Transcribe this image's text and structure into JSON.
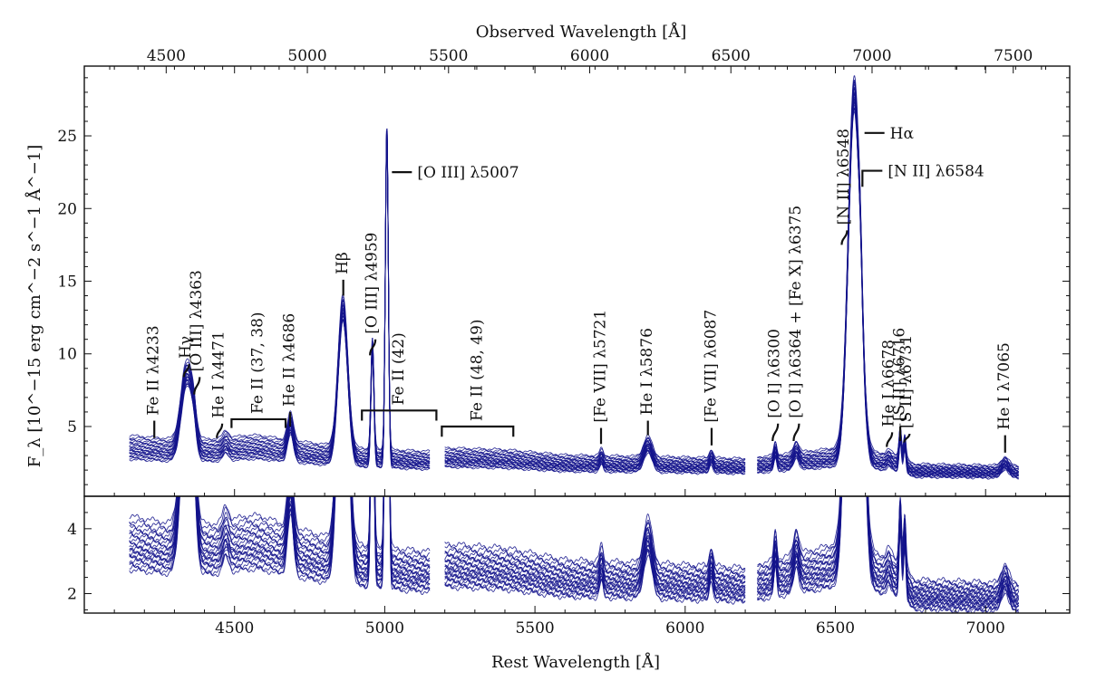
{
  "chart_data": {
    "type": "line",
    "title": "",
    "top_axis": {
      "label": "Observed Wavelength [Å]",
      "ticks": [
        4500,
        5000,
        5500,
        6000,
        6500,
        7000,
        7500
      ],
      "tick_labels": [
        "4500",
        "5000",
        "5500",
        "6000",
        "6500",
        "7000",
        "7500"
      ],
      "range": [
        4210,
        7700
      ]
    },
    "xlabel": "Rest Wavelength [Å]",
    "ylabel": "F_λ [10^−15 erg cm^−2 s^−1 Å^−1]",
    "xlim": [
      4000,
      7280
    ],
    "x_ticks": [
      4500,
      5000,
      5500,
      6000,
      6500,
      7000
    ],
    "x_tick_labels": [
      "4500",
      "5000",
      "5500",
      "6000",
      "6500",
      "7000"
    ],
    "panels": [
      {
        "name": "full",
        "ylim": [
          0.2,
          29.8
        ],
        "y_ticks": [
          5,
          10,
          15,
          20,
          25
        ],
        "y_tick_labels": [
          "5",
          "10",
          "15",
          "20",
          "25"
        ]
      },
      {
        "name": "zoom",
        "ylim": [
          1.4,
          5.0
        ],
        "y_ticks": [
          2,
          4
        ],
        "y_tick_labels": [
          "2",
          "4"
        ]
      }
    ],
    "n_epochs": 24,
    "epoch_scale": [
      0.76,
      0.78,
      0.8,
      0.82,
      0.84,
      0.86,
      0.87,
      0.89,
      0.9,
      0.92,
      0.93,
      0.95,
      0.96,
      0.98,
      1.0,
      1.02,
      1.04,
      1.06,
      1.08,
      1.1,
      1.12,
      1.15,
      1.18,
      1.22
    ],
    "segments": [
      [
        4150,
        5150
      ],
      [
        5200,
        5950
      ],
      [
        5950,
        6200
      ],
      [
        6240,
        7110
      ]
    ],
    "continuum": [
      {
        "x": 4150,
        "y": 3.6
      },
      {
        "x": 4300,
        "y": 3.4
      },
      {
        "x": 4500,
        "y": 3.4
      },
      {
        "x": 4700,
        "y": 3.3
      },
      {
        "x": 4900,
        "y": 2.9
      },
      {
        "x": 5150,
        "y": 2.7
      },
      {
        "x": 5200,
        "y": 2.9
      },
      {
        "x": 5400,
        "y": 2.8
      },
      {
        "x": 5600,
        "y": 2.5
      },
      {
        "x": 5950,
        "y": 2.4
      },
      {
        "x": 6200,
        "y": 2.3
      },
      {
        "x": 6250,
        "y": 2.4
      },
      {
        "x": 6500,
        "y": 2.9
      },
      {
        "x": 6720,
        "y": 2.5
      },
      {
        "x": 6760,
        "y": 2.0
      },
      {
        "x": 7110,
        "y": 1.9
      }
    ],
    "emission_lines": [
      {
        "name": "Hγ",
        "center": 4340,
        "peak": 5.2,
        "width": 18
      },
      {
        "name": "[O III] 4363",
        "center": 4363,
        "peak": 1.5,
        "width": 10
      },
      {
        "name": "He I 4471",
        "center": 4471,
        "peak": 0.5,
        "width": 10
      },
      {
        "name": "He II 4686",
        "center": 4686,
        "peak": 1.9,
        "width": 10
      },
      {
        "name": "Hβ",
        "center": 4861,
        "peak": 10.2,
        "width": 16
      },
      {
        "name": "[O III] 4959",
        "center": 4959,
        "peak": 7.7,
        "width": 5
      },
      {
        "name": "[O III] 5007",
        "center": 5007,
        "peak": 22.5,
        "width": 5
      },
      {
        "name": "[Fe VII] 5721",
        "center": 5721,
        "peak": 0.5,
        "width": 6
      },
      {
        "name": "He I 5876",
        "center": 5876,
        "peak": 1.4,
        "width": 14
      },
      {
        "name": "[Fe VII] 6087",
        "center": 6087,
        "peak": 0.6,
        "width": 6
      },
      {
        "name": "[O I] 6300",
        "center": 6300,
        "peak": 0.9,
        "width": 5
      },
      {
        "name": "[O I] 6364 + [Fe X] 6375",
        "center": 6370,
        "peak": 0.8,
        "width": 9
      },
      {
        "name": "Hα",
        "center": 6563,
        "peak": 25.2,
        "width": 20
      },
      {
        "name": "[N II] 6584",
        "center": 6584,
        "peak": 2.0,
        "width": 6
      },
      {
        "name": "He I 6678",
        "center": 6678,
        "peak": 0.3,
        "width": 8
      },
      {
        "name": "[S II] 6716",
        "center": 6716,
        "peak": 2.0,
        "width": 4
      },
      {
        "name": "[S II] 6731",
        "center": 6731,
        "peak": 1.6,
        "width": 4
      },
      {
        "name": "He I 7065",
        "center": 7065,
        "peak": 0.6,
        "width": 12
      }
    ],
    "annotations": [
      {
        "text": "Fe II λ4233",
        "x": 4233,
        "y": 6.5,
        "tick_top": 4.2,
        "tick_bottom": 5.4,
        "rotate": true,
        "shape": "tick"
      },
      {
        "text": "Hγ",
        "x": 4340,
        "y": 9.4,
        "tick_top": 8.4,
        "tick_bottom": 9.3,
        "rotate": true,
        "shape": "hook"
      },
      {
        "text": "[O III] λ4363",
        "x": 4375,
        "y": 8.5,
        "tick_top": 7.2,
        "tick_bottom": 8.4,
        "rotate": true,
        "shape": "hook"
      },
      {
        "text": "He I λ4471",
        "x": 4450,
        "y": 5.3,
        "tick_top": 4.2,
        "tick_bottom": 5.2,
        "rotate": true,
        "shape": "hook"
      },
      {
        "text": "Fe II (37, 38)",
        "x1": 4490,
        "x2": 4670,
        "y": 5.7,
        "tick_top": 4.9,
        "tick_bottom": 5.5,
        "rotate": true,
        "shape": "bracket"
      },
      {
        "text": "He II λ4686",
        "x": 4685,
        "y": 6.0,
        "tick_top": 5.0,
        "tick_bottom": 6.0,
        "rotate": true,
        "shape": "tick"
      },
      {
        "text": "Hβ",
        "x": 4862,
        "y": 15.1,
        "tick_top": 14.0,
        "tick_bottom": 15.1,
        "rotate": true,
        "shape": "tick"
      },
      {
        "text": "[O III] λ4959",
        "x": 4960,
        "y": 11.0,
        "tick_top": 9.9,
        "tick_bottom": 11.0,
        "rotate": true,
        "shape": "hook"
      },
      {
        "text": "Fe II (42)",
        "x1": 4924,
        "x2": 5172,
        "y": 6.2,
        "tick_top": 5.4,
        "tick_bottom": 6.1,
        "rotate": true,
        "shape": "bracket"
      },
      {
        "text": "[O III] λ5007",
        "x": 5024,
        "y": 22.5,
        "tick_top": 22.5,
        "tick_bottom": 22.5,
        "rotate": false,
        "shape": "horizontal"
      },
      {
        "text": "Fe II (48, 49)",
        "x1": 5190,
        "x2": 5428,
        "y": 5.2,
        "tick_top": 4.3,
        "tick_bottom": 5.0,
        "rotate": true,
        "shape": "bracket"
      },
      {
        "text": "[Fe VII] λ5721",
        "x": 5720,
        "y": 5.3,
        "tick_top": 3.8,
        "tick_bottom": 4.9,
        "rotate": true,
        "shape": "tick"
      },
      {
        "text": "He I λ5876",
        "x": 5876,
        "y": 5.4,
        "tick_top": 4.4,
        "tick_bottom": 5.4,
        "rotate": true,
        "shape": "tick"
      },
      {
        "text": "[Fe VII] λ6087",
        "x": 6088,
        "y": 5.3,
        "tick_top": 3.7,
        "tick_bottom": 4.9,
        "rotate": true,
        "shape": "tick"
      },
      {
        "text": "[O I] λ6300",
        "x": 6300,
        "y": 5.5,
        "tick_top": 4.0,
        "tick_bottom": 5.2,
        "rotate": true,
        "shape": "hook"
      },
      {
        "text": "[O I] λ6364 + [Fe X] λ6375",
        "x": 6370,
        "y": 5.5,
        "tick_top": 4.0,
        "tick_bottom": 5.2,
        "rotate": true,
        "shape": "hook"
      },
      {
        "text": "[N II] λ6548",
        "x": 6530,
        "y": 18.5,
        "tick_top": 17.5,
        "tick_bottom": 18.5,
        "rotate": true,
        "shape": "hook"
      },
      {
        "text": "Hα",
        "x": 6597,
        "y": 25.2,
        "tick_top": 25.2,
        "tick_bottom": 25.2,
        "rotate": false,
        "shape": "horizontal"
      },
      {
        "text": "[N II] λ6584",
        "x": 6590,
        "y": 22.6,
        "tick_top": 21.5,
        "tick_bottom": 22.6,
        "rotate": false,
        "shape": "corner"
      },
      {
        "text": "He I λ6678",
        "x": 6680,
        "y": 4.6,
        "tick_top": 3.6,
        "tick_bottom": 4.6,
        "rotate": true,
        "shape": "hook"
      },
      {
        "text": "[S II] λ6716",
        "x": 6716,
        "y": 5.0,
        "tick_top": 4.0,
        "tick_bottom": 5.0,
        "rotate": true,
        "shape": "tick"
      },
      {
        "text": "[S II] λ6731",
        "x": 6738,
        "y": 4.5,
        "tick_top": 3.9,
        "tick_bottom": 4.5,
        "rotate": true,
        "shape": "hook"
      },
      {
        "text": "He I λ7065",
        "x": 7065,
        "y": 4.6,
        "tick_top": 3.2,
        "tick_bottom": 4.4,
        "rotate": true,
        "shape": "tick"
      }
    ]
  }
}
